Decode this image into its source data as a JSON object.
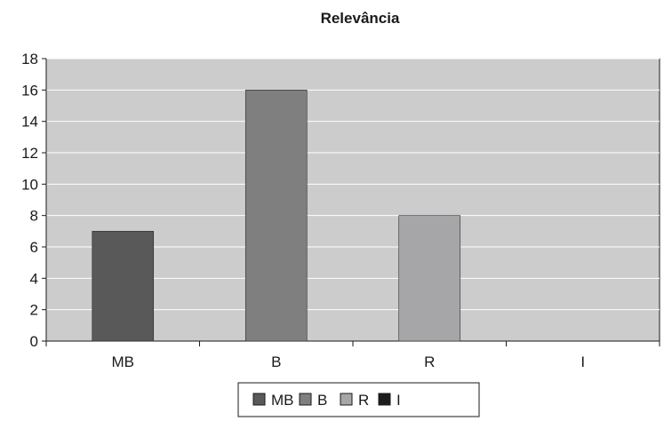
{
  "chart_data": {
    "type": "bar",
    "title": "Relevância",
    "categories": [
      "MB",
      "B",
      "R",
      "I"
    ],
    "values": [
      7,
      16,
      8,
      0
    ],
    "colors": [
      "#595959",
      "#7f7f80",
      "#a6a6a8",
      "#1c1c1c"
    ],
    "ylim": [
      0,
      18
    ],
    "yticks": [
      0,
      2,
      4,
      6,
      8,
      10,
      12,
      14,
      16,
      18
    ],
    "xlabel": "",
    "ylabel": "",
    "grid": true,
    "plot_background": "#cccccc",
    "legend": {
      "placement": "bottom",
      "entries": [
        "MB",
        "B",
        "R",
        "I"
      ]
    }
  }
}
